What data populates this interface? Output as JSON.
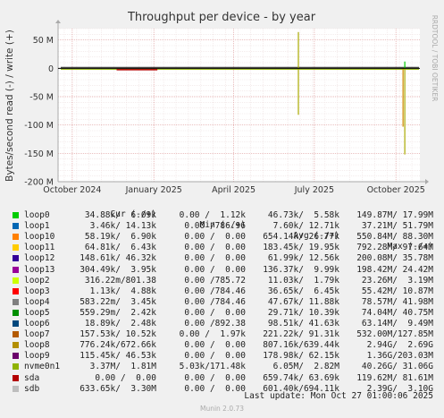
{
  "chart_data": {
    "type": "line",
    "title": "Throughput per device - by year",
    "ylabel": "Bytes/second read (-) / write (+)",
    "side_label": "RRDTOOL / TOBI OETIKER",
    "ylim": [
      -200000000,
      70000000
    ],
    "yticks": [
      {
        "v": 50000000,
        "label": "50 M"
      },
      {
        "v": 0,
        "label": "0"
      },
      {
        "v": -50000000,
        "label": "-50 M"
      },
      {
        "v": -100000000,
        "label": "-100 M"
      },
      {
        "v": -150000000,
        "label": "-150 M"
      },
      {
        "v": -200000000,
        "label": "-200 M"
      }
    ],
    "xlim": [
      "2024-09-15",
      "2025-10-28"
    ],
    "xticks": [
      {
        "date": "2024-10-01",
        "label": "October 2024"
      },
      {
        "date": "2025-01-01",
        "label": "January 2025"
      },
      {
        "date": "2025-04-01",
        "label": "April 2025"
      },
      {
        "date": "2025-07-01",
        "label": "July 2025"
      },
      {
        "date": "2025-10-01",
        "label": "October 2025"
      }
    ],
    "baseline_period": [
      "2024-09-18",
      "2025-10-27"
    ],
    "spikes": [
      {
        "date": "2025-06-13",
        "value": 64000000,
        "color": "#aaaa00"
      },
      {
        "date": "2025-06-13",
        "value": -82000000,
        "color": "#aaaa00"
      },
      {
        "date": "2025-10-11",
        "value": 12000000,
        "color": "#00cc00"
      },
      {
        "date": "2025-10-11",
        "value": -152000000,
        "color": "#aaaa00"
      },
      {
        "date": "2025-10-09",
        "value": -103000000,
        "color": "#cc8800"
      }
    ]
  },
  "legend": {
    "headers": {
      "cur": "Cur (-/+)",
      "min": "Min (-/+)",
      "avg": "Avg (-/+)",
      "max": "Max (-/+)"
    },
    "rows": [
      {
        "name": "loop0",
        "color": "#00cc00",
        "cur": "34.88k/  6.09k",
        "min": "0.00 /  1.12k",
        "avg": "46.73k/  5.58k",
        "max": "149.87M/ 17.99M"
      },
      {
        "name": "loop1",
        "color": "#0066b3",
        "cur": "3.46k/ 14.13k",
        "min": "0.00 /786.96",
        "avg": "7.60k/ 12.71k",
        "max": "37.21M/ 51.79M"
      },
      {
        "name": "loop10",
        "color": "#ff8000",
        "cur": "58.19k/  6.90k",
        "min": "0.00 /  0.00",
        "avg": "654.14k/ 26.77k",
        "max": "550.84M/ 88.30M"
      },
      {
        "name": "loop11",
        "color": "#ffcc00",
        "cur": "64.81k/  6.43k",
        "min": "0.00 /  0.00",
        "avg": "183.45k/ 19.95k",
        "max": "792.28M/ 97.64M"
      },
      {
        "name": "loop12",
        "color": "#330099",
        "cur": "148.61k/ 46.32k",
        "min": "0.00 /  0.00",
        "avg": "61.99k/ 12.56k",
        "max": "200.08M/ 35.78M"
      },
      {
        "name": "loop13",
        "color": "#990099",
        "cur": "304.49k/  3.95k",
        "min": "0.00 /  0.00",
        "avg": "136.37k/  9.99k",
        "max": "198.42M/ 24.42M"
      },
      {
        "name": "loop2",
        "color": "#ccff00",
        "cur": "316.22m/801.38",
        "min": "0.00 /785.72",
        "avg": "11.03k/  1.79k",
        "max": "23.26M/  3.19M"
      },
      {
        "name": "loop3",
        "color": "#ff0000",
        "cur": "1.13k/  4.88k",
        "min": "0.00 /784.46",
        "avg": "36.65k/  6.45k",
        "max": "55.42M/ 10.87M"
      },
      {
        "name": "loop4",
        "color": "#808080",
        "cur": "583.22m/  3.45k",
        "min": "0.00 /784.46",
        "avg": "47.67k/ 11.88k",
        "max": "78.57M/ 41.98M"
      },
      {
        "name": "loop5",
        "color": "#008f00",
        "cur": "559.29m/  2.42k",
        "min": "0.00 /  0.00",
        "avg": "29.71k/ 10.39k",
        "max": "74.04M/ 40.75M"
      },
      {
        "name": "loop6",
        "color": "#00487d",
        "cur": "18.89k/  2.48k",
        "min": "0.00 /892.38",
        "avg": "98.51k/ 41.63k",
        "max": "63.14M/  9.49M"
      },
      {
        "name": "loop7",
        "color": "#b35a00",
        "cur": "157.53k/ 10.52k",
        "min": "0.00 /  1.97k",
        "avg": "221.22k/ 91.31k",
        "max": "532.00M/127.85M"
      },
      {
        "name": "loop8",
        "color": "#b38f00",
        "cur": "776.24k/672.66k",
        "min": "0.00 /  0.00",
        "avg": "807.16k/639.44k",
        "max": "2.94G/  2.69G"
      },
      {
        "name": "loop9",
        "color": "#6b006b",
        "cur": "115.45k/ 46.53k",
        "min": "0.00 /  0.00",
        "avg": "178.98k/ 62.15k",
        "max": "1.36G/203.03M"
      },
      {
        "name": "nvme0n1",
        "color": "#8fb300",
        "cur": "3.37M/  1.81M",
        "min": "5.03k/171.48k",
        "avg": "6.05M/  2.82M",
        "max": "40.26G/ 31.06G"
      },
      {
        "name": "sda",
        "color": "#b30000",
        "cur": "0.00 /  0.00",
        "min": "0.00 /  0.00",
        "avg": "659.74k/ 63.69k",
        "max": "119.62M/ 81.61M"
      },
      {
        "name": "sdb",
        "color": "#bebebe",
        "cur": "633.65k/  3.30M",
        "min": "0.00 /  0.00",
        "avg": "601.40k/694.11k",
        "max": "2.39G/  3.10G"
      }
    ]
  },
  "last_update": "Last update: Mon Oct 27 01:00:06 2025",
  "footer": "Munin 2.0.73",
  "colors": {
    "background": "#f0f0f0",
    "plot_bg": "#ffffff",
    "grid": "#e0a0a0",
    "axis": "#aaaaaa"
  }
}
